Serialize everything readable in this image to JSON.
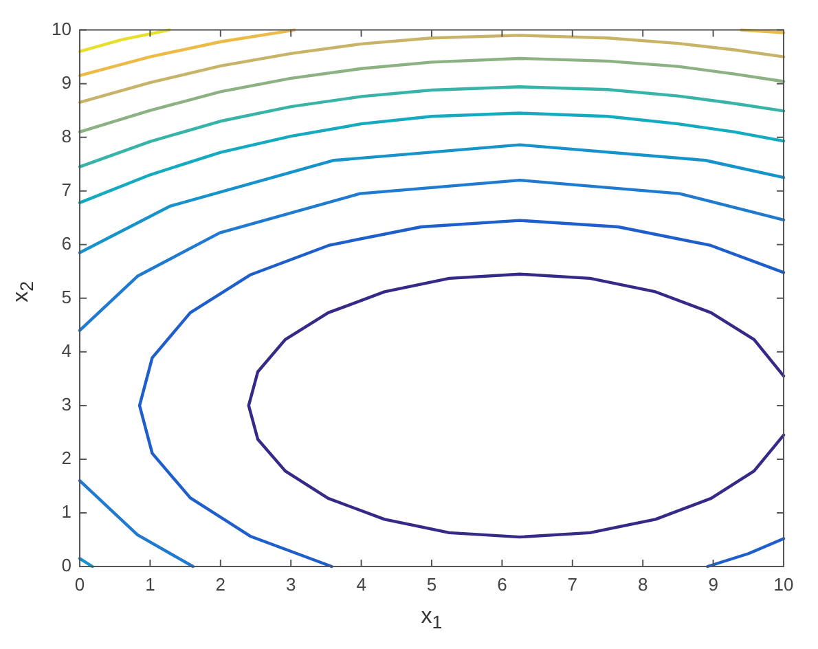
{
  "chart_data": {
    "type": "line",
    "xlabel": "x$_{1}$",
    "ylabel": "x$_{2}$",
    "xlim": [
      0,
      10
    ],
    "ylim": [
      0,
      10
    ],
    "xticks": [
      0,
      1,
      2,
      3,
      4,
      5,
      6,
      7,
      8,
      9,
      10
    ],
    "yticks": [
      0,
      1,
      2,
      3,
      4,
      5,
      6,
      7,
      8,
      9,
      10
    ],
    "marker": "none",
    "line_style": "solid",
    "series": [
      {
        "color": "#352a87",
        "x": [
          10,
          9.58,
          8.97,
          8.18,
          7.25,
          6.25,
          5.25,
          4.33,
          3.53,
          2.92,
          2.53,
          2.4,
          2.53,
          2.92,
          3.53,
          4.33,
          5.25,
          6.25,
          7.25,
          8.18,
          8.97,
          9.58,
          10
        ],
        "values": [
          3.55,
          4.23,
          4.73,
          5.12,
          5.37,
          5.45,
          5.37,
          5.12,
          4.73,
          4.23,
          3.63,
          3,
          2.37,
          1.78,
          1.27,
          0.88,
          0.63,
          0.55,
          0.63,
          0.88,
          1.27,
          1.78,
          2.45
        ]
      },
      {
        "color": "#1f5fcc",
        "x": [
          10,
          8.95,
          7.65,
          6.25,
          4.85,
          3.55,
          2.43,
          1.57,
          1.03,
          0.85,
          1.03,
          1.57,
          2.43,
          3.58,
          null,
          8.92,
          9.5,
          10
        ],
        "values": [
          5.48,
          5.99,
          6.33,
          6.45,
          6.33,
          5.99,
          5.44,
          4.73,
          3.89,
          3,
          2.11,
          1.28,
          0.56,
          0,
          null,
          0,
          0.24,
          0.52
        ]
      },
      {
        "color": "#1f7ad0",
        "x": [
          10,
          8.52,
          6.25,
          3.98,
          1.99,
          0.82,
          0,
          null,
          0,
          0.82,
          1.61
        ],
        "values": [
          6.46,
          6.95,
          7.2,
          6.95,
          6.22,
          5.41,
          4.4,
          null,
          1.6,
          0.59,
          0
        ]
      },
      {
        "color": "#1793cc",
        "x": [
          10,
          8.89,
          6.25,
          3.61,
          1.29,
          0,
          null,
          0,
          0.18
        ],
        "values": [
          7.25,
          7.57,
          7.86,
          7.57,
          6.72,
          5.85,
          null,
          0.15,
          0
        ]
      },
      {
        "color": "#14aac0",
        "x": [
          0,
          1,
          2,
          3,
          4,
          5,
          6.25,
          7.5,
          8.5,
          9.3,
          10
        ],
        "values": [
          6.78,
          7.3,
          7.72,
          8.02,
          8.25,
          8.39,
          8.45,
          8.39,
          8.25,
          8.1,
          7.93
        ]
      },
      {
        "color": "#38b3a8",
        "x": [
          0,
          1,
          2,
          3,
          4,
          5,
          6.25,
          7.5,
          8.5,
          9.3,
          10
        ],
        "values": [
          7.45,
          7.92,
          8.3,
          8.57,
          8.76,
          8.88,
          8.94,
          8.89,
          8.77,
          8.63,
          8.49
        ]
      },
      {
        "color": "#8cb182",
        "x": [
          0,
          1,
          2,
          3,
          4,
          5,
          6.25,
          7.5,
          8.5,
          9.3,
          10
        ],
        "values": [
          8.1,
          8.5,
          8.85,
          9.1,
          9.28,
          9.4,
          9.47,
          9.42,
          9.32,
          9.18,
          9.04
        ]
      },
      {
        "color": "#c8b468",
        "x": [
          0,
          1,
          2,
          3,
          4,
          5,
          6.25,
          7.5,
          8.5,
          9.3,
          10
        ],
        "values": [
          8.65,
          9.02,
          9.33,
          9.56,
          9.74,
          9.85,
          9.9,
          9.85,
          9.75,
          9.63,
          9.5
        ]
      },
      {
        "color": "#ecba46",
        "x": [
          0,
          1,
          2,
          3.05,
          null,
          9.4,
          10
        ],
        "values": [
          9.15,
          9.5,
          9.78,
          10,
          null,
          10,
          9.95
        ]
      },
      {
        "color": "#e6e02c",
        "x": [
          0,
          0.6,
          1.27
        ],
        "values": [
          9.6,
          9.82,
          10
        ]
      }
    ]
  }
}
